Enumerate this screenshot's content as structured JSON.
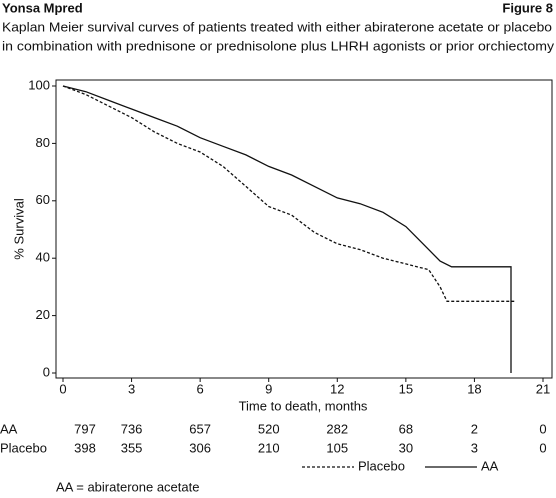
{
  "header": {
    "left": "Yonsa Mpred",
    "right": "Figure 8"
  },
  "chart_data": {
    "type": "line",
    "title": "Kaplan Meier survival curves of patients treated with either abiraterone acetate or placebo",
    "subtitle": "in combination with prednisone or prednisolone plus LHRH agonists or prior orchiectomy",
    "x_label": "Time to death, months",
    "y_label": "% Survival",
    "xlim": [
      0,
      21
    ],
    "xticks": [
      0,
      3,
      6,
      9,
      12,
      15,
      18,
      21
    ],
    "ylim": [
      0,
      100
    ],
    "yticks": [
      0,
      20,
      40,
      60,
      80,
      100
    ],
    "series": [
      {
        "name": "Placebo",
        "color": "#111111",
        "line_style": "dashed",
        "x": [
          0,
          1,
          2,
          3,
          4,
          5,
          6,
          7,
          8,
          9,
          10,
          11,
          12,
          13,
          14,
          15,
          16,
          16.5,
          16.8,
          19.8
        ],
        "values": [
          100,
          97,
          93,
          89,
          84,
          80,
          77,
          72,
          65,
          58,
          55,
          49,
          45,
          43,
          40,
          38,
          36,
          30,
          25,
          25
        ]
      },
      {
        "name": "AA",
        "color": "#111111",
        "line_style": "solid",
        "x": [
          0,
          1,
          2,
          3,
          4,
          5,
          6,
          7,
          8,
          9,
          10,
          11,
          12,
          13,
          14,
          15,
          15.5,
          16,
          16.5,
          17,
          19.6,
          19.6
        ],
        "values": [
          100,
          98,
          95,
          92,
          89,
          86,
          82,
          79,
          76,
          72,
          69,
          65,
          61,
          59,
          56,
          51,
          47,
          43,
          39,
          37,
          37,
          0
        ]
      }
    ]
  },
  "risk_table": {
    "rows": [
      {
        "label": "AA",
        "counts": [
          797,
          736,
          657,
          520,
          282,
          68,
          2,
          0
        ]
      },
      {
        "label": "Placebo",
        "counts": [
          398,
          355,
          306,
          210,
          105,
          30,
          3,
          0
        ]
      }
    ]
  },
  "footnote": "AA = abiraterone acetate"
}
